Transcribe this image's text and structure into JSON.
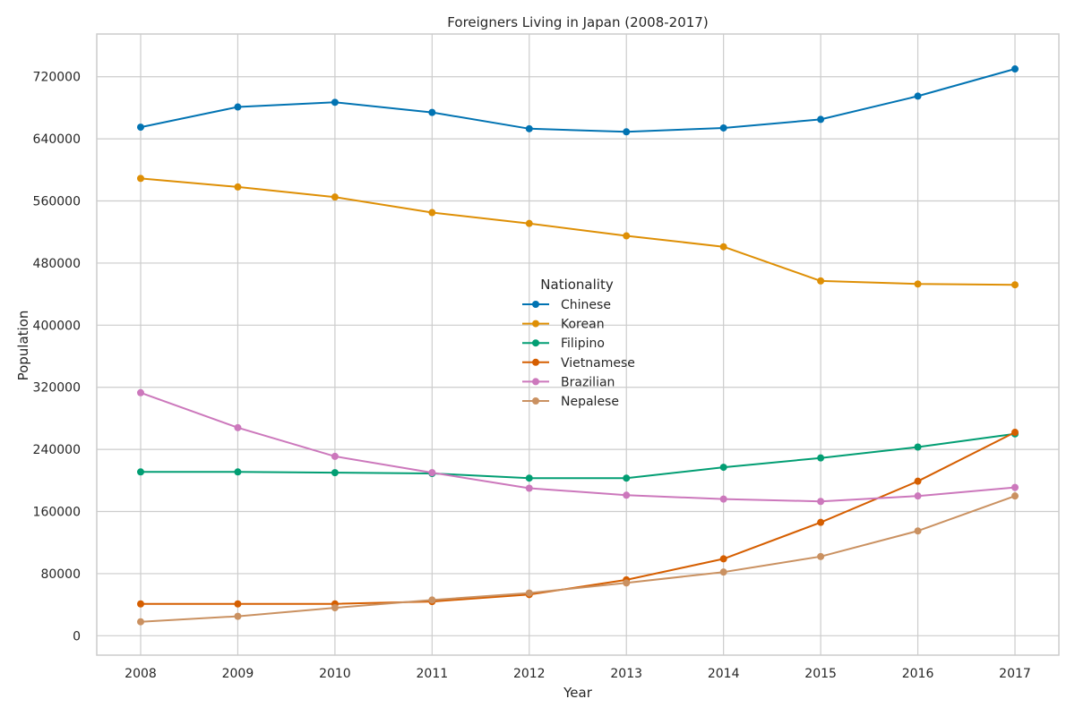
{
  "chart_data": {
    "type": "line",
    "title": "Foreigners Living in Japan (2008-2017)",
    "xlabel": "Year",
    "ylabel": "Population",
    "x": [
      2008,
      2009,
      2010,
      2011,
      2012,
      2013,
      2014,
      2015,
      2016,
      2017
    ],
    "x_tick_labels": [
      "2008",
      "2009",
      "2010",
      "2011",
      "2012",
      "2013",
      "2014",
      "2015",
      "2016",
      "2017"
    ],
    "ylim": [
      -25000,
      775000
    ],
    "y_ticks": [
      0,
      80000,
      160000,
      240000,
      320000,
      400000,
      480000,
      560000,
      640000,
      720000
    ],
    "y_tick_labels": [
      "0",
      "80000",
      "160000",
      "240000",
      "320000",
      "400000",
      "480000",
      "560000",
      "640000",
      "720000"
    ],
    "grid": true,
    "legend": {
      "title": "Nationality",
      "placement": "center"
    },
    "series": [
      {
        "name": "Chinese",
        "color": "#0173b2",
        "values": [
          655000,
          681000,
          687000,
          674000,
          653000,
          649000,
          654000,
          665000,
          695000,
          730000
        ]
      },
      {
        "name": "Korean",
        "color": "#de8f05",
        "values": [
          589000,
          578000,
          565000,
          545000,
          531000,
          515000,
          501000,
          457000,
          453000,
          452000
        ]
      },
      {
        "name": "Filipino",
        "color": "#029e73",
        "values": [
          211000,
          211000,
          210000,
          209000,
          203000,
          203000,
          217000,
          229000,
          243000,
          260000
        ]
      },
      {
        "name": "Vietnamese",
        "color": "#d55e00",
        "values": [
          41000,
          41000,
          41000,
          44000,
          53000,
          72000,
          99000,
          146000,
          199000,
          262000
        ]
      },
      {
        "name": "Brazilian",
        "color": "#cc78bc",
        "values": [
          313000,
          268000,
          231000,
          210000,
          190000,
          181000,
          176000,
          173000,
          180000,
          191000
        ]
      },
      {
        "name": "Nepalese",
        "color": "#ca9161",
        "values": [
          18000,
          25000,
          36000,
          46000,
          55000,
          68000,
          82000,
          102000,
          135000,
          180000
        ]
      }
    ]
  }
}
